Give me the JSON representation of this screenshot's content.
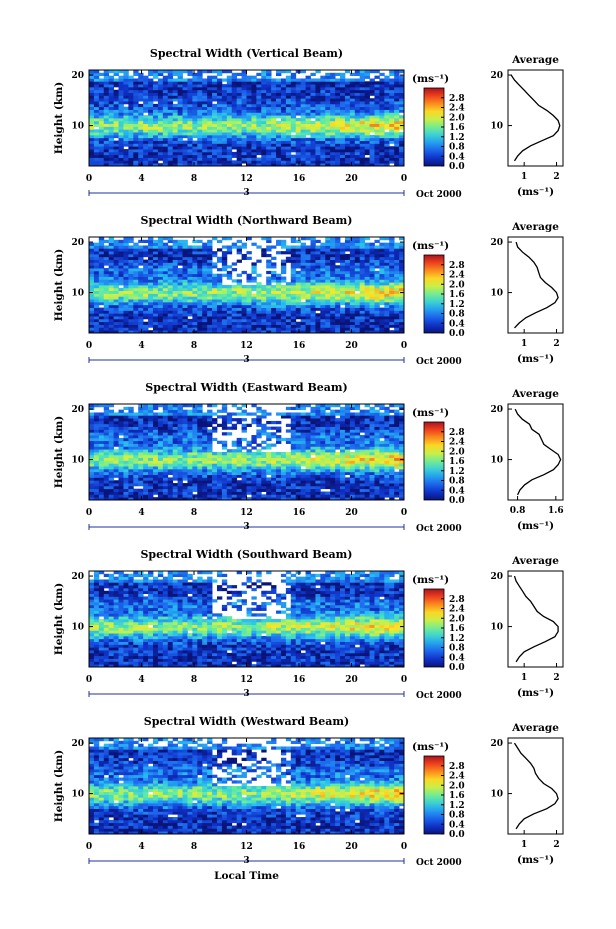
{
  "figure": {
    "xlabel": "Local Time"
  },
  "chart_data": [
    {
      "type": "heatmap",
      "title": "Spectral Width (Vertical Beam)",
      "xlabel": "",
      "ylabel": "Height (km)",
      "x_ticks": [
        "0",
        "4",
        "8",
        "12",
        "16",
        "20",
        "0"
      ],
      "x_range": [
        0,
        24
      ],
      "y_ticks": [
        "20",
        "10"
      ],
      "y_range": [
        2,
        21
      ],
      "date_marker": "3",
      "date_label": "Oct 2000",
      "colorbar": {
        "unit": "(ms⁻¹)",
        "ticks": [
          "0.0",
          "0.4",
          "0.8",
          "1.2",
          "1.6",
          "2.0",
          "2.4",
          "2.8"
        ],
        "range": [
          0,
          3.2
        ]
      },
      "profile": {
        "title": "Average",
        "xlabel": "(ms⁻¹)",
        "x_ticks": [
          "1",
          "2"
        ],
        "x_tick_values": [
          1,
          2
        ],
        "x_range": [
          0.5,
          2.2
        ],
        "heights": [
          3,
          4,
          5,
          6,
          7,
          8,
          9,
          10,
          11,
          12,
          13,
          14,
          15,
          16,
          17,
          18,
          19,
          20
        ],
        "values": [
          0.7,
          0.8,
          0.95,
          1.2,
          1.55,
          1.9,
          2.05,
          2.1,
          2.05,
          1.9,
          1.7,
          1.45,
          1.3,
          1.15,
          1.0,
          0.85,
          0.7,
          0.6
        ]
      }
    },
    {
      "type": "heatmap",
      "title": "Spectral Width (Northward Beam)",
      "xlabel": "",
      "ylabel": "Height (km)",
      "x_ticks": [
        "0",
        "4",
        "8",
        "12",
        "16",
        "20",
        "0"
      ],
      "x_range": [
        0,
        24
      ],
      "y_ticks": [
        "20",
        "10"
      ],
      "y_range": [
        2,
        21
      ],
      "date_marker": "3",
      "date_label": "Oct 2000",
      "colorbar": {
        "unit": "(ms⁻¹)",
        "ticks": [
          "0.0",
          "0.4",
          "0.8",
          "1.2",
          "1.6",
          "2.0",
          "2.4",
          "2.8"
        ],
        "range": [
          0,
          3.2
        ]
      },
      "profile": {
        "title": "Average",
        "xlabel": "(ms⁻¹)",
        "x_ticks": [
          "1",
          "2"
        ],
        "x_tick_values": [
          1,
          2
        ],
        "x_range": [
          0.5,
          2.2
        ],
        "heights": [
          3,
          4,
          5,
          6,
          7,
          8,
          9,
          10,
          11,
          12,
          13,
          14,
          15,
          16,
          17,
          18,
          19,
          20
        ],
        "values": [
          0.7,
          0.85,
          1.05,
          1.35,
          1.7,
          1.95,
          2.05,
          2.0,
          1.85,
          1.65,
          1.5,
          1.45,
          1.4,
          1.3,
          1.15,
          0.95,
          0.8,
          0.75
        ]
      }
    },
    {
      "type": "heatmap",
      "title": "Spectral Width (Eastward Beam)",
      "xlabel": "",
      "ylabel": "Height (km)",
      "x_ticks": [
        "0",
        "4",
        "8",
        "12",
        "16",
        "20",
        "0"
      ],
      "x_range": [
        0,
        24
      ],
      "y_ticks": [
        "20",
        "10"
      ],
      "y_range": [
        2,
        21
      ],
      "date_marker": "3",
      "date_label": "Oct 2000",
      "colorbar": {
        "unit": "(ms⁻¹)",
        "ticks": [
          "0.0",
          "0.4",
          "0.8",
          "1.2",
          "1.6",
          "2.0",
          "2.4",
          "2.8"
        ],
        "range": [
          0,
          3.2
        ]
      },
      "profile": {
        "title": "Average",
        "xlabel": "(ms⁻¹)",
        "x_ticks": [
          "0.8",
          "1.6"
        ],
        "x_tick_values": [
          0.8,
          1.6
        ],
        "x_range": [
          0.6,
          1.75
        ],
        "heights": [
          3,
          4,
          5,
          6,
          7,
          8,
          9,
          10,
          11,
          12,
          13,
          14,
          15,
          16,
          17,
          18,
          19,
          20
        ],
        "values": [
          0.8,
          0.85,
          0.95,
          1.1,
          1.35,
          1.55,
          1.65,
          1.7,
          1.65,
          1.5,
          1.35,
          1.3,
          1.25,
          1.1,
          1.05,
          0.9,
          0.8,
          0.75
        ]
      }
    },
    {
      "type": "heatmap",
      "title": "Spectral Width (Southward Beam)",
      "xlabel": "",
      "ylabel": "Height (km)",
      "x_ticks": [
        "0",
        "4",
        "8",
        "12",
        "16",
        "20",
        "0"
      ],
      "x_range": [
        0,
        24
      ],
      "y_ticks": [
        "20",
        "10"
      ],
      "y_range": [
        2,
        21
      ],
      "date_marker": "3",
      "date_label": "Oct 2000",
      "colorbar": {
        "unit": "(ms⁻¹)",
        "ticks": [
          "0.0",
          "0.4",
          "0.8",
          "1.2",
          "1.6",
          "2.0",
          "2.4",
          "2.8"
        ],
        "range": [
          0,
          3.2
        ]
      },
      "profile": {
        "title": "Average",
        "xlabel": "(ms⁻¹)",
        "x_ticks": [
          "1",
          "2"
        ],
        "x_tick_values": [
          1,
          2
        ],
        "x_range": [
          0.5,
          2.2
        ],
        "heights": [
          3,
          4,
          5,
          6,
          7,
          8,
          9,
          10,
          11,
          12,
          13,
          14,
          15,
          16,
          17,
          18,
          19,
          20
        ],
        "values": [
          0.75,
          0.85,
          1.0,
          1.3,
          1.65,
          1.95,
          2.05,
          2.05,
          1.9,
          1.6,
          1.4,
          1.3,
          1.2,
          1.05,
          0.95,
          0.85,
          0.75,
          0.7
        ]
      }
    },
    {
      "type": "heatmap",
      "title": "Spectral Width (Westward Beam)",
      "xlabel": "",
      "ylabel": "Height (km)",
      "x_ticks": [
        "0",
        "4",
        "8",
        "12",
        "16",
        "20",
        "0"
      ],
      "x_range": [
        0,
        24
      ],
      "y_ticks": [
        "20",
        "10"
      ],
      "y_range": [
        2,
        21
      ],
      "date_marker": "3",
      "date_label": "Oct 2000",
      "colorbar": {
        "unit": "(ms⁻¹)",
        "ticks": [
          "0.0",
          "0.4",
          "0.8",
          "1.2",
          "1.6",
          "2.0",
          "2.4",
          "2.8"
        ],
        "range": [
          0,
          3.2
        ]
      },
      "profile": {
        "title": "Average",
        "xlabel": "(ms⁻¹)",
        "x_ticks": [
          "1",
          "2"
        ],
        "x_tick_values": [
          1,
          2
        ],
        "x_range": [
          0.5,
          2.2
        ],
        "heights": [
          3,
          4,
          5,
          6,
          7,
          8,
          9,
          10,
          11,
          12,
          13,
          14,
          15,
          16,
          17,
          18,
          19,
          20
        ],
        "values": [
          0.75,
          0.85,
          1.0,
          1.3,
          1.7,
          1.95,
          2.05,
          2.0,
          1.85,
          1.6,
          1.45,
          1.35,
          1.3,
          1.2,
          1.05,
          0.9,
          0.8,
          0.7
        ]
      }
    }
  ]
}
